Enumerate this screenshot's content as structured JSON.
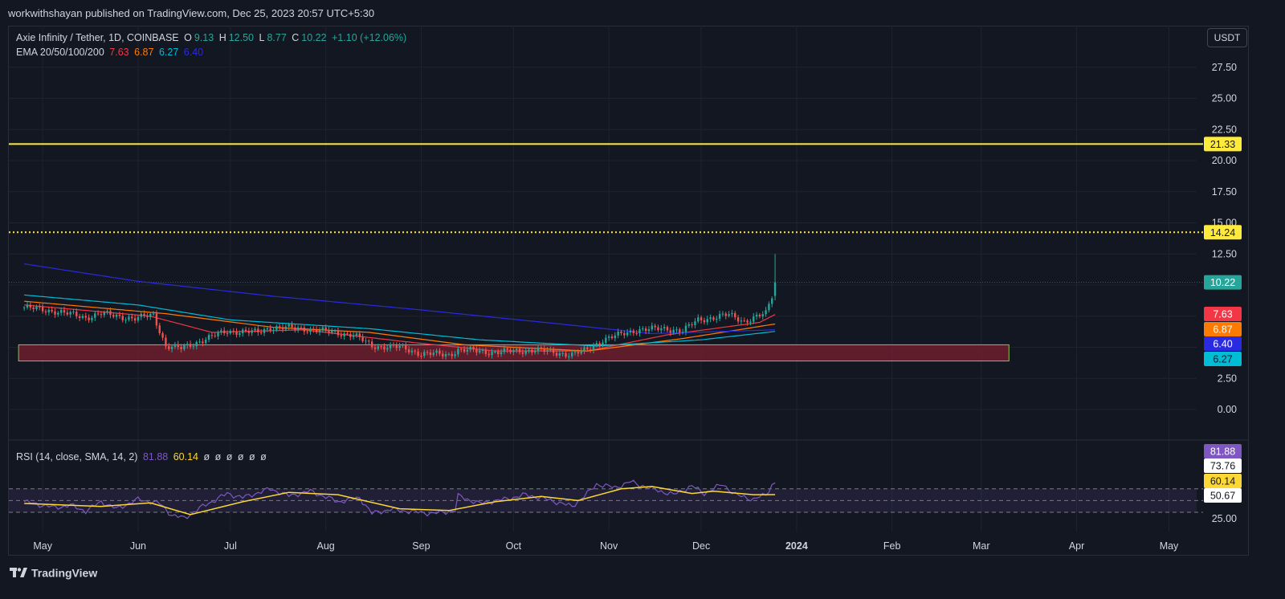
{
  "header": {
    "published": "workwithshayan published on TradingView.com, Dec 25, 2023 20:57 UTC+5:30"
  },
  "legend": {
    "symbol": "Axie Infinity / Tether, 1D, COINBASE",
    "o_label": "O",
    "o_value": "9.13",
    "h_label": "H",
    "h_value": "12.50",
    "l_label": "L",
    "l_value": "8.77",
    "c_label": "C",
    "c_value": "10.22",
    "change": "+1.10 (+12.06%)",
    "ema_label": "EMA 20/50/100/200",
    "ema20": "7.63",
    "ema50": "6.87",
    "ema100": "6.27",
    "ema200": "6.40",
    "rsi_label": "RSI (14, close, SMA, 14, 2)",
    "rsi_value": "81.88",
    "rsi_ma_value": "60.14",
    "rsi_empty": [
      "ø",
      "ø",
      "ø",
      "ø",
      "ø",
      "ø"
    ]
  },
  "unit_button": "USDT",
  "footer": {
    "brand": "TradingView"
  },
  "colors": {
    "background": "#131722",
    "grid": "#1f2330",
    "up": "#26a69a",
    "down": "#ef5350",
    "ema20": "#f23645",
    "ema50": "#ff7a00",
    "ema100": "#00bcd4",
    "ema200": "#2a2ae0",
    "resistance": "#ffeb3b",
    "support_zone": "#6d1f2e",
    "rsi": "#7e57c2",
    "rsi_ma": "#fdd835"
  },
  "chart_data": {
    "type": "candlestick",
    "price_axis": {
      "ticks": [
        0.0,
        2.5,
        5.0,
        7.5,
        10.0,
        12.5,
        15.0,
        17.5,
        20.0,
        22.5,
        25.0,
        27.5
      ],
      "tick_labels": [
        "0.00",
        "2.50",
        "5.00",
        "7.50",
        "10.00",
        "12.50",
        "15.00",
        "17.50",
        "20.00",
        "22.50",
        "25.00",
        "27.50"
      ]
    },
    "time_axis": {
      "labels": [
        "May",
        "Jun",
        "Jul",
        "Aug",
        "Sep",
        "Oct",
        "Nov",
        "Dec",
        "2024",
        "Feb",
        "Mar",
        "Apr",
        "May"
      ],
      "bold": [
        "2024"
      ]
    },
    "levels": [
      {
        "price": 21.33,
        "label": "21.33",
        "style": "solid",
        "color": "#ffeb3b"
      },
      {
        "price": 14.24,
        "label": "14.24",
        "style": "dotted",
        "color": "#ffeb3b"
      },
      {
        "price": 10.22,
        "label": "10.22",
        "style": "dotted-thin",
        "color": "#26a69a"
      }
    ],
    "support_zone": {
      "from_price": 3.9,
      "to_price": 5.2,
      "start": "2023-04-25",
      "end": "2024-03-10"
    },
    "ema_last_labels": [
      {
        "value": 7.63,
        "label": "7.63",
        "color": "#f23645"
      },
      {
        "value": 6.87,
        "label": "6.87",
        "color": "#ff7a00"
      },
      {
        "value": 6.4,
        "label": "6.40",
        "color": "#2a2ae0"
      },
      {
        "value": 6.27,
        "label": "6.27",
        "color": "#00bcd4"
      }
    ],
    "close_path": [
      [
        "2023-04-25",
        8.2
      ],
      [
        "2023-05-05",
        7.9
      ],
      [
        "2023-05-15",
        7.4
      ],
      [
        "2023-05-20",
        7.7
      ],
      [
        "2023-05-31",
        7.3
      ],
      [
        "2023-06-06",
        7.6
      ],
      [
        "2023-06-10",
        5.1
      ],
      [
        "2023-06-15",
        4.9
      ],
      [
        "2023-06-20",
        5.4
      ],
      [
        "2023-06-30",
        6.3
      ],
      [
        "2023-07-10",
        6.2
      ],
      [
        "2023-07-14",
        6.6
      ],
      [
        "2023-07-25",
        6.5
      ],
      [
        "2023-08-10",
        6.0
      ],
      [
        "2023-08-16",
        5.1
      ],
      [
        "2023-08-25",
        5.0
      ],
      [
        "2023-09-01",
        4.5
      ],
      [
        "2023-09-10",
        4.4
      ],
      [
        "2023-09-13",
        4.8
      ],
      [
        "2023-09-25",
        4.6
      ],
      [
        "2023-10-08",
        4.8
      ],
      [
        "2023-10-20",
        4.4
      ],
      [
        "2023-10-25",
        4.8
      ],
      [
        "2023-10-30",
        5.6
      ],
      [
        "2023-11-10",
        6.4
      ],
      [
        "2023-11-20",
        6.5
      ],
      [
        "2023-11-25",
        6.3
      ],
      [
        "2023-11-30",
        7.2
      ],
      [
        "2023-12-10",
        7.6
      ],
      [
        "2023-12-15",
        7.1
      ],
      [
        "2023-12-22",
        7.7
      ],
      [
        "2023-12-24",
        9.1
      ],
      [
        "2023-12-25",
        10.22
      ]
    ],
    "ema_paths": {
      "ema20": [
        [
          "2023-04-25",
          8.4
        ],
        [
          "2023-06-05",
          7.5
        ],
        [
          "2023-06-25",
          6.2
        ],
        [
          "2023-07-25",
          6.4
        ],
        [
          "2023-08-25",
          5.5
        ],
        [
          "2023-09-25",
          4.7
        ],
        [
          "2023-10-25",
          4.7
        ],
        [
          "2023-11-20",
          6.0
        ],
        [
          "2023-12-20",
          7.0
        ],
        [
          "2023-12-25",
          7.63
        ]
      ],
      "ema50": [
        [
          "2023-04-25",
          8.7
        ],
        [
          "2023-06-10",
          7.7
        ],
        [
          "2023-07-15",
          6.6
        ],
        [
          "2023-08-15",
          6.2
        ],
        [
          "2023-09-15",
          5.2
        ],
        [
          "2023-10-25",
          4.7
        ],
        [
          "2023-11-25",
          5.7
        ],
        [
          "2023-12-25",
          6.87
        ]
      ],
      "ema100": [
        [
          "2023-04-25",
          9.2
        ],
        [
          "2023-06-01",
          8.4
        ],
        [
          "2023-07-01",
          7.2
        ],
        [
          "2023-08-15",
          6.5
        ],
        [
          "2023-09-20",
          5.6
        ],
        [
          "2023-10-28",
          5.1
        ],
        [
          "2023-12-01",
          5.6
        ],
        [
          "2023-12-25",
          6.27
        ]
      ],
      "ema200": [
        [
          "2023-04-25",
          11.7
        ],
        [
          "2023-06-01",
          10.3
        ],
        [
          "2023-07-15",
          9.1
        ],
        [
          "2023-09-01",
          8.0
        ],
        [
          "2023-10-15",
          6.9
        ],
        [
          "2023-11-15",
          6.1
        ],
        [
          "2023-12-25",
          6.4
        ]
      ]
    },
    "rsi": {
      "axis_labels": [
        {
          "value": 81.88,
          "label": "81.88",
          "color": "#7e57c2"
        },
        {
          "value": 73.76,
          "label": "73.76",
          "color": "#ffffff"
        },
        {
          "value": 60.14,
          "label": "60.14",
          "color": "#fdd835"
        },
        {
          "value": 50.67,
          "label": "50.67",
          "color": "#ffffff"
        },
        {
          "value": 25.0,
          "label": "25.00",
          "color": "none"
        }
      ],
      "bands": [
        70,
        50,
        30
      ],
      "rsi_path": [
        [
          "2023-04-25",
          48
        ],
        [
          "2023-05-05",
          38
        ],
        [
          "2023-05-10",
          42
        ],
        [
          "2023-05-15",
          32
        ],
        [
          "2023-05-20",
          48
        ],
        [
          "2023-05-25",
          36
        ],
        [
          "2023-06-01",
          52
        ],
        [
          "2023-06-08",
          45
        ],
        [
          "2023-06-12",
          25
        ],
        [
          "2023-06-16",
          20
        ],
        [
          "2023-06-22",
          40
        ],
        [
          "2023-06-30",
          62
        ],
        [
          "2023-07-05",
          55
        ],
        [
          "2023-07-14",
          70
        ],
        [
          "2023-07-20",
          58
        ],
        [
          "2023-07-27",
          66
        ],
        [
          "2023-08-05",
          48
        ],
        [
          "2023-08-12",
          55
        ],
        [
          "2023-08-16",
          28
        ],
        [
          "2023-08-22",
          35
        ],
        [
          "2023-08-31",
          30
        ],
        [
          "2023-09-05",
          28
        ],
        [
          "2023-09-12",
          33
        ],
        [
          "2023-09-13",
          58
        ],
        [
          "2023-09-20",
          45
        ],
        [
          "2023-09-28",
          52
        ],
        [
          "2023-10-05",
          60
        ],
        [
          "2023-10-12",
          52
        ],
        [
          "2023-10-20",
          40
        ],
        [
          "2023-10-25",
          62
        ],
        [
          "2023-10-28",
          78
        ],
        [
          "2023-11-03",
          72
        ],
        [
          "2023-11-08",
          82
        ],
        [
          "2023-11-15",
          70
        ],
        [
          "2023-11-22",
          60
        ],
        [
          "2023-11-28",
          75
        ],
        [
          "2023-12-02",
          62
        ],
        [
          "2023-12-08",
          78
        ],
        [
          "2023-12-12",
          60
        ],
        [
          "2023-12-18",
          52
        ],
        [
          "2023-12-22",
          60
        ],
        [
          "2023-12-24",
          76
        ],
        [
          "2023-12-25",
          81.88
        ]
      ],
      "rsi_ma_path": [
        [
          "2023-04-25",
          45
        ],
        [
          "2023-05-20",
          40
        ],
        [
          "2023-06-05",
          46
        ],
        [
          "2023-06-18",
          26
        ],
        [
          "2023-07-05",
          48
        ],
        [
          "2023-07-20",
          64
        ],
        [
          "2023-08-05",
          60
        ],
        [
          "2023-08-25",
          36
        ],
        [
          "2023-09-10",
          33
        ],
        [
          "2023-09-25",
          48
        ],
        [
          "2023-10-10",
          57
        ],
        [
          "2023-10-22",
          50
        ],
        [
          "2023-11-05",
          70
        ],
        [
          "2023-11-15",
          74
        ],
        [
          "2023-11-28",
          62
        ],
        [
          "2023-12-05",
          66
        ],
        [
          "2023-12-18",
          60
        ],
        [
          "2023-12-25",
          60.14
        ]
      ]
    }
  }
}
